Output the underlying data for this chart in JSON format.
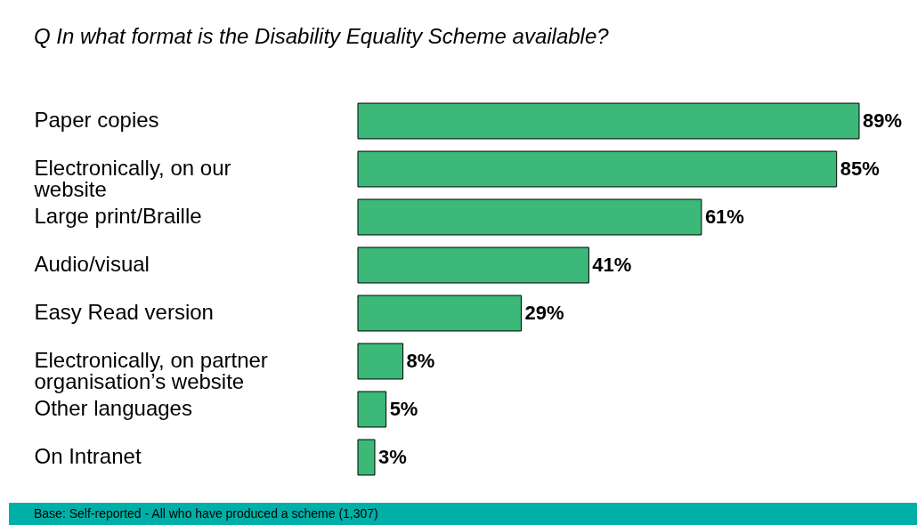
{
  "chart_data": {
    "type": "bar",
    "orientation": "horizontal",
    "title": "Q   In what format is the Disability Equality Scheme available?",
    "categories": [
      "Paper copies",
      "Electronically, on our website",
      "Large print/Braille",
      "Audio/visual",
      "Easy Read version",
      "Electronically, on partner organisation’s website",
      "Other languages",
      "On Intranet"
    ],
    "values": [
      89,
      85,
      61,
      41,
      29,
      8,
      5,
      3
    ],
    "value_labels": [
      "89%",
      "85%",
      "61%",
      "41%",
      "29%",
      "8%",
      "5%",
      "3%"
    ],
    "color": "#3cb878",
    "annotations": [
      "Base: Self-reported - All who have produced a scheme (1,307)"
    ]
  }
}
